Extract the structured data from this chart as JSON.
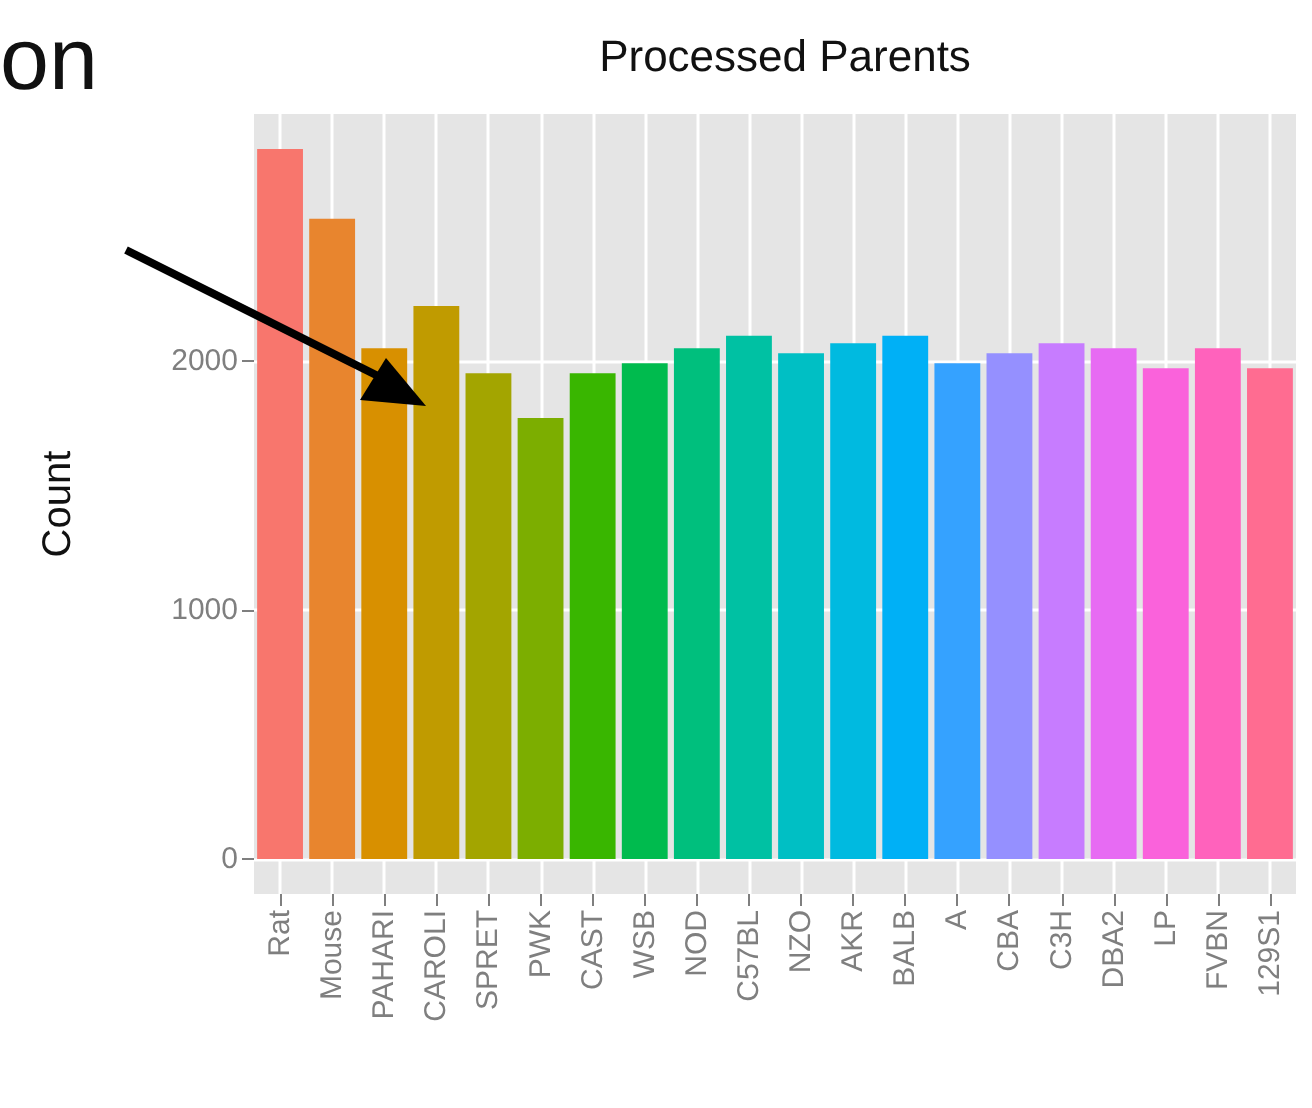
{
  "chart_data": {
    "type": "bar",
    "title": "Processed Parents",
    "ylabel": "Count",
    "categories": [
      "Rat",
      "Mouse",
      "PAHARI",
      "CAROLI",
      "SPRET",
      "PWK",
      "CAST",
      "WSB",
      "NOD",
      "C57BL",
      "NZO",
      "AKR",
      "BALB",
      "A",
      "CBA",
      "C3H",
      "DBA2",
      "LP",
      "FVBN",
      "129S1"
    ],
    "values": [
      2850,
      2570,
      2050,
      2220,
      1950,
      1770,
      1950,
      1990,
      2050,
      2100,
      2030,
      2070,
      2100,
      1990,
      2030,
      2070,
      2050,
      1970,
      2050,
      1970
    ],
    "colors": [
      "#f8766d",
      "#e8852e",
      "#d89000",
      "#c09b00",
      "#a3a500",
      "#7cae00",
      "#39b600",
      "#00bb4e",
      "#00bf7d",
      "#00c1a3",
      "#00bfc4",
      "#00bae0",
      "#00b0f6",
      "#35a2ff",
      "#9590ff",
      "#c77cff",
      "#e76bf3",
      "#fa62db",
      "#ff62bc",
      "#ff6c91"
    ],
    "ylim": [
      -140,
      2990
    ],
    "yticks": [
      0,
      1000,
      2000
    ],
    "grid": true,
    "annotations": [
      "on"
    ]
  }
}
